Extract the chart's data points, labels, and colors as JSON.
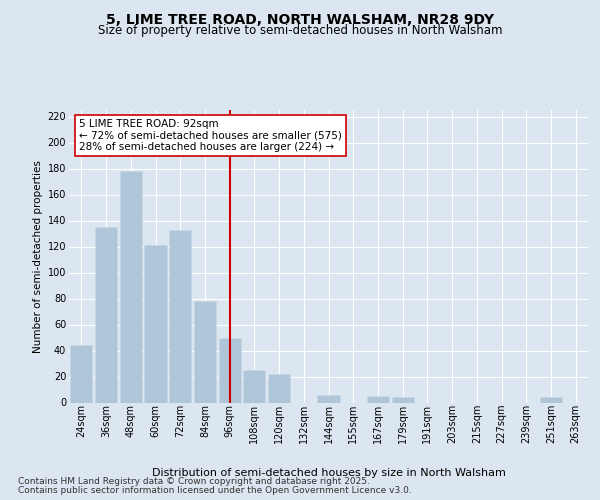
{
  "title1": "5, LIME TREE ROAD, NORTH WALSHAM, NR28 9DY",
  "title2": "Size of property relative to semi-detached houses in North Walsham",
  "xlabel": "Distribution of semi-detached houses by size in North Walsham",
  "ylabel": "Number of semi-detached properties",
  "bar_labels": [
    "24sqm",
    "36sqm",
    "48sqm",
    "60sqm",
    "72sqm",
    "84sqm",
    "96sqm",
    "108sqm",
    "120sqm",
    "132sqm",
    "144sqm",
    "155sqm",
    "167sqm",
    "179sqm",
    "191sqm",
    "203sqm",
    "215sqm",
    "227sqm",
    "239sqm",
    "251sqm",
    "263sqm"
  ],
  "bar_values": [
    44,
    135,
    178,
    121,
    133,
    78,
    50,
    25,
    22,
    0,
    6,
    0,
    5,
    4,
    0,
    0,
    0,
    0,
    0,
    4,
    0
  ],
  "bar_color": "#aec6d8",
  "bar_edge_color": "#c8d8e8",
  "annotation_title": "5 LIME TREE ROAD: 92sqm",
  "annotation_line1": "← 72% of semi-detached houses are smaller (575)",
  "annotation_line2": "28% of semi-detached houses are larger (224) →",
  "vline_color": "#cc0000",
  "ylim": [
    0,
    225
  ],
  "yticks": [
    0,
    20,
    40,
    60,
    80,
    100,
    120,
    140,
    160,
    180,
    200,
    220
  ],
  "background_color": "#dce6f0",
  "plot_bg_color": "#dce6f0",
  "grid_color": "#ffffff",
  "footer1": "Contains HM Land Registry data © Crown copyright and database right 2025.",
  "footer2": "Contains public sector information licensed under the Open Government Licence v3.0.",
  "title1_fontsize": 10,
  "title2_fontsize": 8.5,
  "xlabel_fontsize": 8,
  "ylabel_fontsize": 7.5,
  "tick_fontsize": 7,
  "annotation_fontsize": 7.5,
  "footer_fontsize": 6.5
}
